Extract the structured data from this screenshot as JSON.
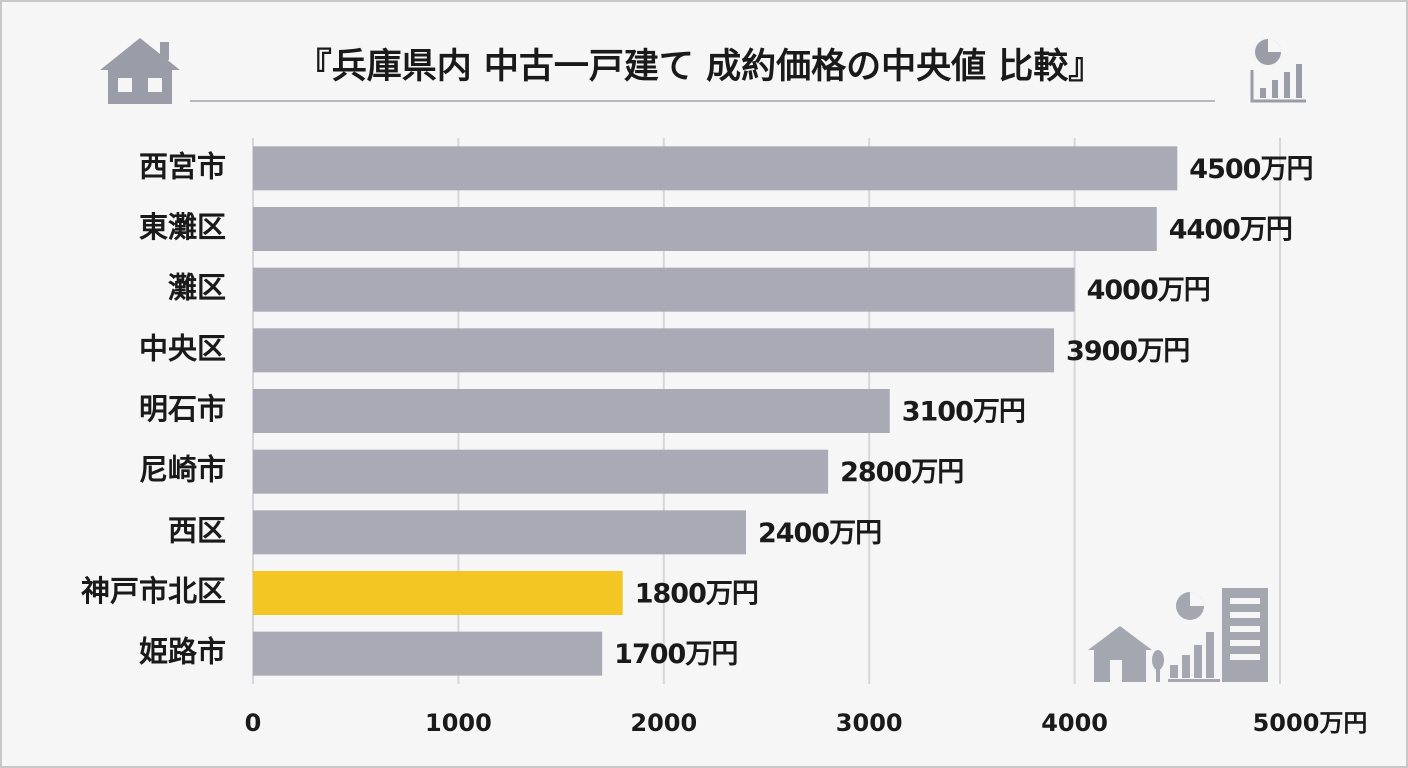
{
  "chart_data": {
    "type": "barh",
    "title": "『兵庫県内 中古一戸建て 成約価格の中央値 比較』",
    "categories": [
      "西宮市",
      "東灘区",
      "灘区",
      "中央区",
      "明石市",
      "尼崎市",
      "西区",
      "神戸市北区",
      "姫路市"
    ],
    "values": [
      4500,
      4400,
      4000,
      3900,
      3100,
      2800,
      2400,
      1800,
      1700
    ],
    "value_labels": [
      "4500万円",
      "4400万円",
      "4000万円",
      "3900万円",
      "3100万円",
      "2800万円",
      "2400万円",
      "1800万円",
      "1700万円"
    ],
    "colors": [
      "#a9aab5",
      "#a9aab5",
      "#a9aab5",
      "#a9aab5",
      "#a9aab5",
      "#a9aab5",
      "#a9aab5",
      "#f3c623",
      "#a9aab5"
    ],
    "xlim": [
      0,
      5000
    ],
    "xticks": [
      0,
      1000,
      2000,
      3000,
      4000,
      {
        "value": 5000,
        "label": "5000万円"
      }
    ],
    "grid": true
  }
}
